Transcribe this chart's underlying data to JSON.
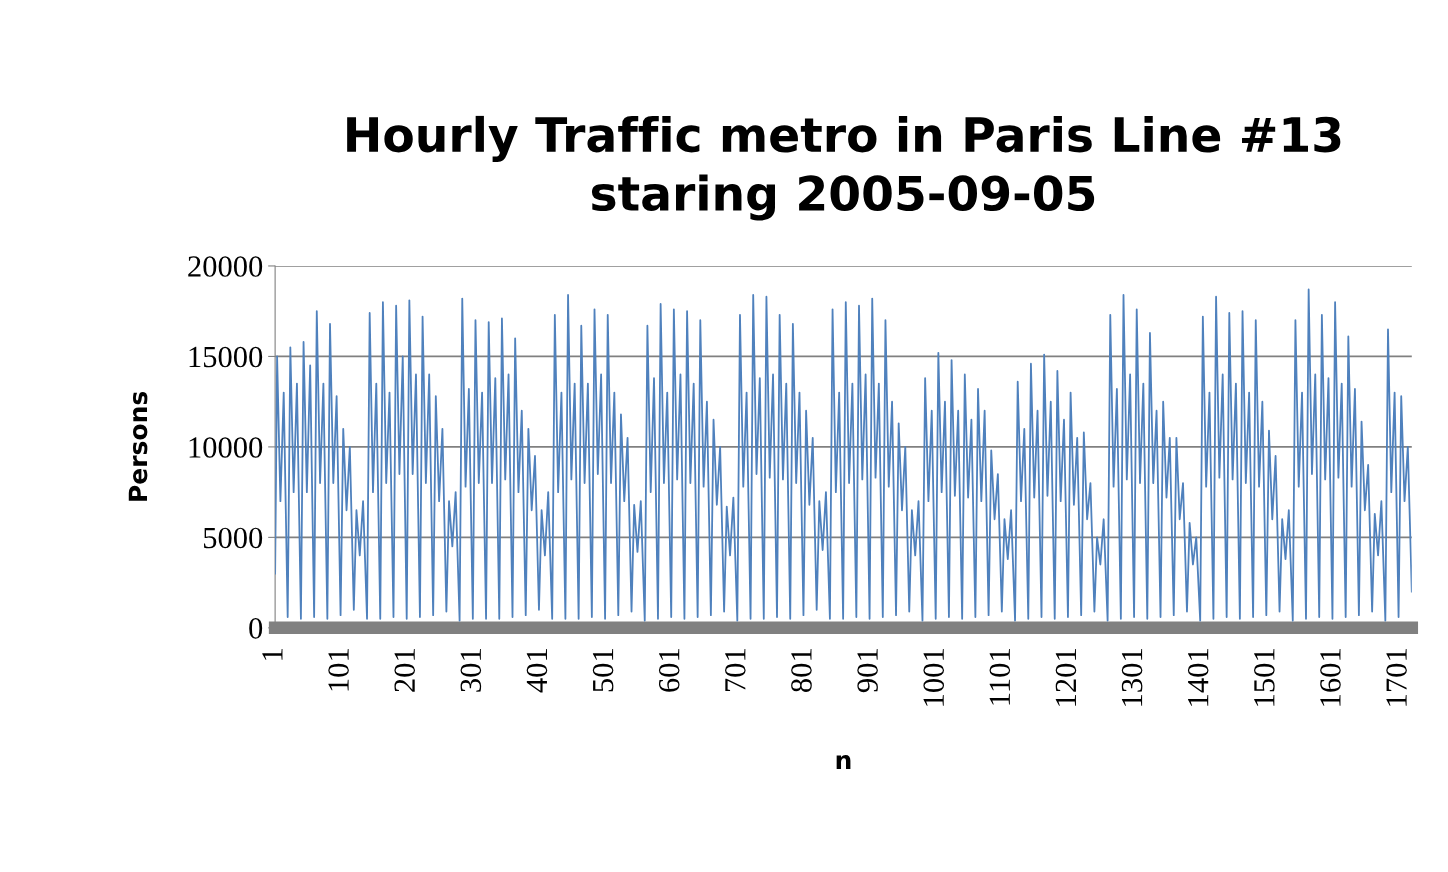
{
  "chart_data": {
    "type": "line",
    "title": "Hourly Traffic metro in Paris Line #13\nstaring 2005-09-05",
    "xlabel": "n",
    "ylabel": "Persons",
    "xlim": [
      1,
      1720
    ],
    "xticks": [
      1,
      101,
      201,
      301,
      401,
      501,
      601,
      701,
      801,
      901,
      1001,
      1101,
      1201,
      1301,
      1401,
      1501,
      1601,
      1701
    ],
    "ylim": [
      0,
      20000
    ],
    "yticks": [
      0,
      5000,
      10000,
      15000,
      20000
    ],
    "grid": "y",
    "series": [
      {
        "color": "#4f81bd",
        "x": [
          1,
          4,
          9,
          14,
          20,
          24,
          29,
          34,
          40,
          44,
          49,
          54,
          60,
          64,
          69,
          74,
          80,
          84,
          89,
          94,
          100,
          104,
          109,
          114,
          120,
          124,
          129,
          134,
          140,
          144,
          149,
          154,
          160,
          164,
          169,
          174,
          180,
          184,
          189,
          194,
          200,
          204,
          209,
          214,
          220,
          224,
          229,
          234,
          240,
          244,
          249,
          254,
          260,
          264,
          269,
          274,
          280,
          284,
          289,
          294,
          300,
          304,
          309,
          314,
          320,
          324,
          329,
          334,
          340,
          344,
          349,
          354,
          360,
          364,
          369,
          374,
          380,
          384,
          389,
          394,
          400,
          404,
          409,
          414,
          420,
          424,
          429,
          434,
          440,
          444,
          449,
          454,
          460,
          464,
          469,
          474,
          480,
          484,
          489,
          494,
          500,
          504,
          509,
          514,
          520,
          524,
          529,
          534,
          540,
          544,
          549,
          554,
          560,
          564,
          569,
          574,
          580,
          584,
          589,
          594,
          600,
          604,
          609,
          614,
          620,
          624,
          629,
          634,
          640,
          644,
          649,
          654,
          660,
          664,
          669,
          674,
          680,
          684,
          689,
          694,
          700,
          704,
          709,
          714,
          720,
          724,
          729,
          734,
          740,
          744,
          749,
          754,
          760,
          764,
          769,
          774,
          780,
          784,
          789,
          794,
          800,
          804,
          809,
          814,
          820,
          824,
          829,
          834,
          840,
          844,
          849,
          854,
          860,
          864,
          869,
          874,
          880,
          884,
          889,
          894,
          900,
          904,
          909,
          914,
          920,
          924,
          929,
          934,
          940,
          944,
          949,
          954,
          960,
          964,
          969,
          974,
          980,
          984,
          989,
          994,
          1000,
          1004,
          1009,
          1014,
          1020,
          1024,
          1029,
          1034,
          1040,
          1044,
          1049,
          1054,
          1060,
          1064,
          1069,
          1074,
          1080,
          1084,
          1089,
          1094,
          1100,
          1104,
          1109,
          1114,
          1120,
          1124,
          1129,
          1134,
          1140,
          1144,
          1149,
          1154,
          1160,
          1164,
          1169,
          1174,
          1180,
          1184,
          1189,
          1194,
          1200,
          1204,
          1209,
          1214,
          1220,
          1224,
          1229,
          1234,
          1240,
          1244,
          1249,
          1254,
          1260,
          1264,
          1269,
          1274,
          1280,
          1284,
          1289,
          1294,
          1300,
          1304,
          1309,
          1314,
          1320,
          1324,
          1329,
          1334,
          1340,
          1344,
          1349,
          1354,
          1360,
          1364,
          1369,
          1374,
          1380,
          1384,
          1389,
          1394,
          1400,
          1404,
          1409,
          1414,
          1420,
          1424,
          1429,
          1434,
          1440,
          1444,
          1449,
          1454,
          1460,
          1464,
          1469,
          1474,
          1480,
          1484,
          1489,
          1494,
          1500,
          1504,
          1509,
          1514,
          1520,
          1524,
          1529,
          1534,
          1540,
          1544,
          1549,
          1554,
          1560,
          1564,
          1569,
          1574,
          1580,
          1584,
          1589,
          1594,
          1600,
          1604,
          1609,
          1614,
          1620,
          1624,
          1629,
          1634,
          1640,
          1644,
          1649,
          1654,
          1660,
          1664,
          1669,
          1674,
          1680,
          1684,
          1689,
          1694,
          1700,
          1704,
          1709,
          1714,
          1720
        ],
        "values": [
          3000,
          15000,
          7000,
          13000,
          600,
          15500,
          7500,
          13500,
          500,
          15800,
          7500,
          14500,
          600,
          17500,
          8000,
          13500,
          500,
          16800,
          8000,
          12800,
          700,
          11000,
          6500,
          10000,
          1000,
          6500,
          4000,
          7000,
          500,
          17400,
          7500,
          13500,
          500,
          18000,
          8000,
          13000,
          600,
          17800,
          8500,
          15000,
          500,
          18100,
          8500,
          14000,
          600,
          17200,
          8000,
          14000,
          700,
          12800,
          7000,
          11000,
          900,
          7000,
          4500,
          7500,
          400,
          18200,
          7800,
          13200,
          500,
          17000,
          8000,
          13000,
          500,
          16900,
          8000,
          13800,
          500,
          17100,
          8200,
          14000,
          600,
          16000,
          7500,
          12000,
          700,
          11000,
          6500,
          9500,
          1000,
          6500,
          4000,
          7500,
          500,
          17300,
          7500,
          13000,
          500,
          18400,
          8200,
          13500,
          500,
          16700,
          8000,
          13500,
          600,
          17600,
          8500,
          14000,
          500,
          17300,
          8000,
          13000,
          700,
          11800,
          7000,
          10500,
          900,
          6800,
          4200,
          7000,
          400,
          16700,
          7500,
          13800,
          500,
          17900,
          8000,
          13000,
          600,
          17600,
          8200,
          14000,
          500,
          17500,
          8000,
          13500,
          600,
          17000,
          7800,
          12500,
          700,
          11500,
          6800,
          10000,
          900,
          6700,
          4000,
          7200,
          400,
          17300,
          7800,
          13000,
          500,
          18400,
          8500,
          13800,
          500,
          18300,
          8300,
          14000,
          600,
          17300,
          8200,
          13500,
          500,
          16800,
          8000,
          13000,
          700,
          12000,
          6800,
          10500,
          1000,
          7000,
          4300,
          7500,
          500,
          17600,
          7500,
          13000,
          500,
          18000,
          8000,
          13500,
          600,
          17800,
          8200,
          14000,
          500,
          18200,
          8300,
          13500,
          600,
          17000,
          7800,
          12500,
          700,
          11300,
          6500,
          10000,
          900,
          6500,
          4000,
          7000,
          400,
          13800,
          7000,
          12000,
          500,
          15200,
          7500,
          12500,
          600,
          14800,
          7300,
          12000,
          500,
          14000,
          7200,
          11500,
          600,
          13200,
          7000,
          12000,
          700,
          9800,
          6000,
          8500,
          900,
          6000,
          3800,
          6500,
          400,
          13600,
          7000,
          11000,
          500,
          14600,
          7200,
          12000,
          600,
          15100,
          7300,
          12500,
          500,
          14200,
          7000,
          11500,
          600,
          13000,
          6800,
          10500,
          700,
          10800,
          6000,
          8000,
          900,
          5000,
          3500,
          6000,
          400,
          17300,
          7800,
          13200,
          500,
          18400,
          8200,
          14000,
          600,
          17600,
          8000,
          13500,
          500,
          16300,
          8000,
          12000,
          600,
          12500,
          7200,
          10500,
          700,
          10500,
          6000,
          8000,
          900,
          5800,
          3500,
          5000,
          400,
          17200,
          7800,
          13000,
          500,
          18300,
          8300,
          14000,
          600,
          17400,
          8200,
          13500,
          500,
          17500,
          8000,
          13000,
          600,
          17000,
          7800,
          12500,
          700,
          10900,
          6000,
          9500,
          900,
          6000,
          3800,
          6500,
          400,
          17000,
          7800,
          13000,
          500,
          18700,
          8500,
          14000,
          600,
          17300,
          8200,
          13800,
          500,
          18000,
          8300,
          13500,
          600,
          16100,
          7800,
          13200,
          700,
          11400,
          6500,
          9000,
          900,
          6300,
          4000,
          7000,
          400,
          16500,
          7500,
          13000,
          600,
          12800,
          7000,
          10000,
          2000
        ]
      }
    ]
  }
}
